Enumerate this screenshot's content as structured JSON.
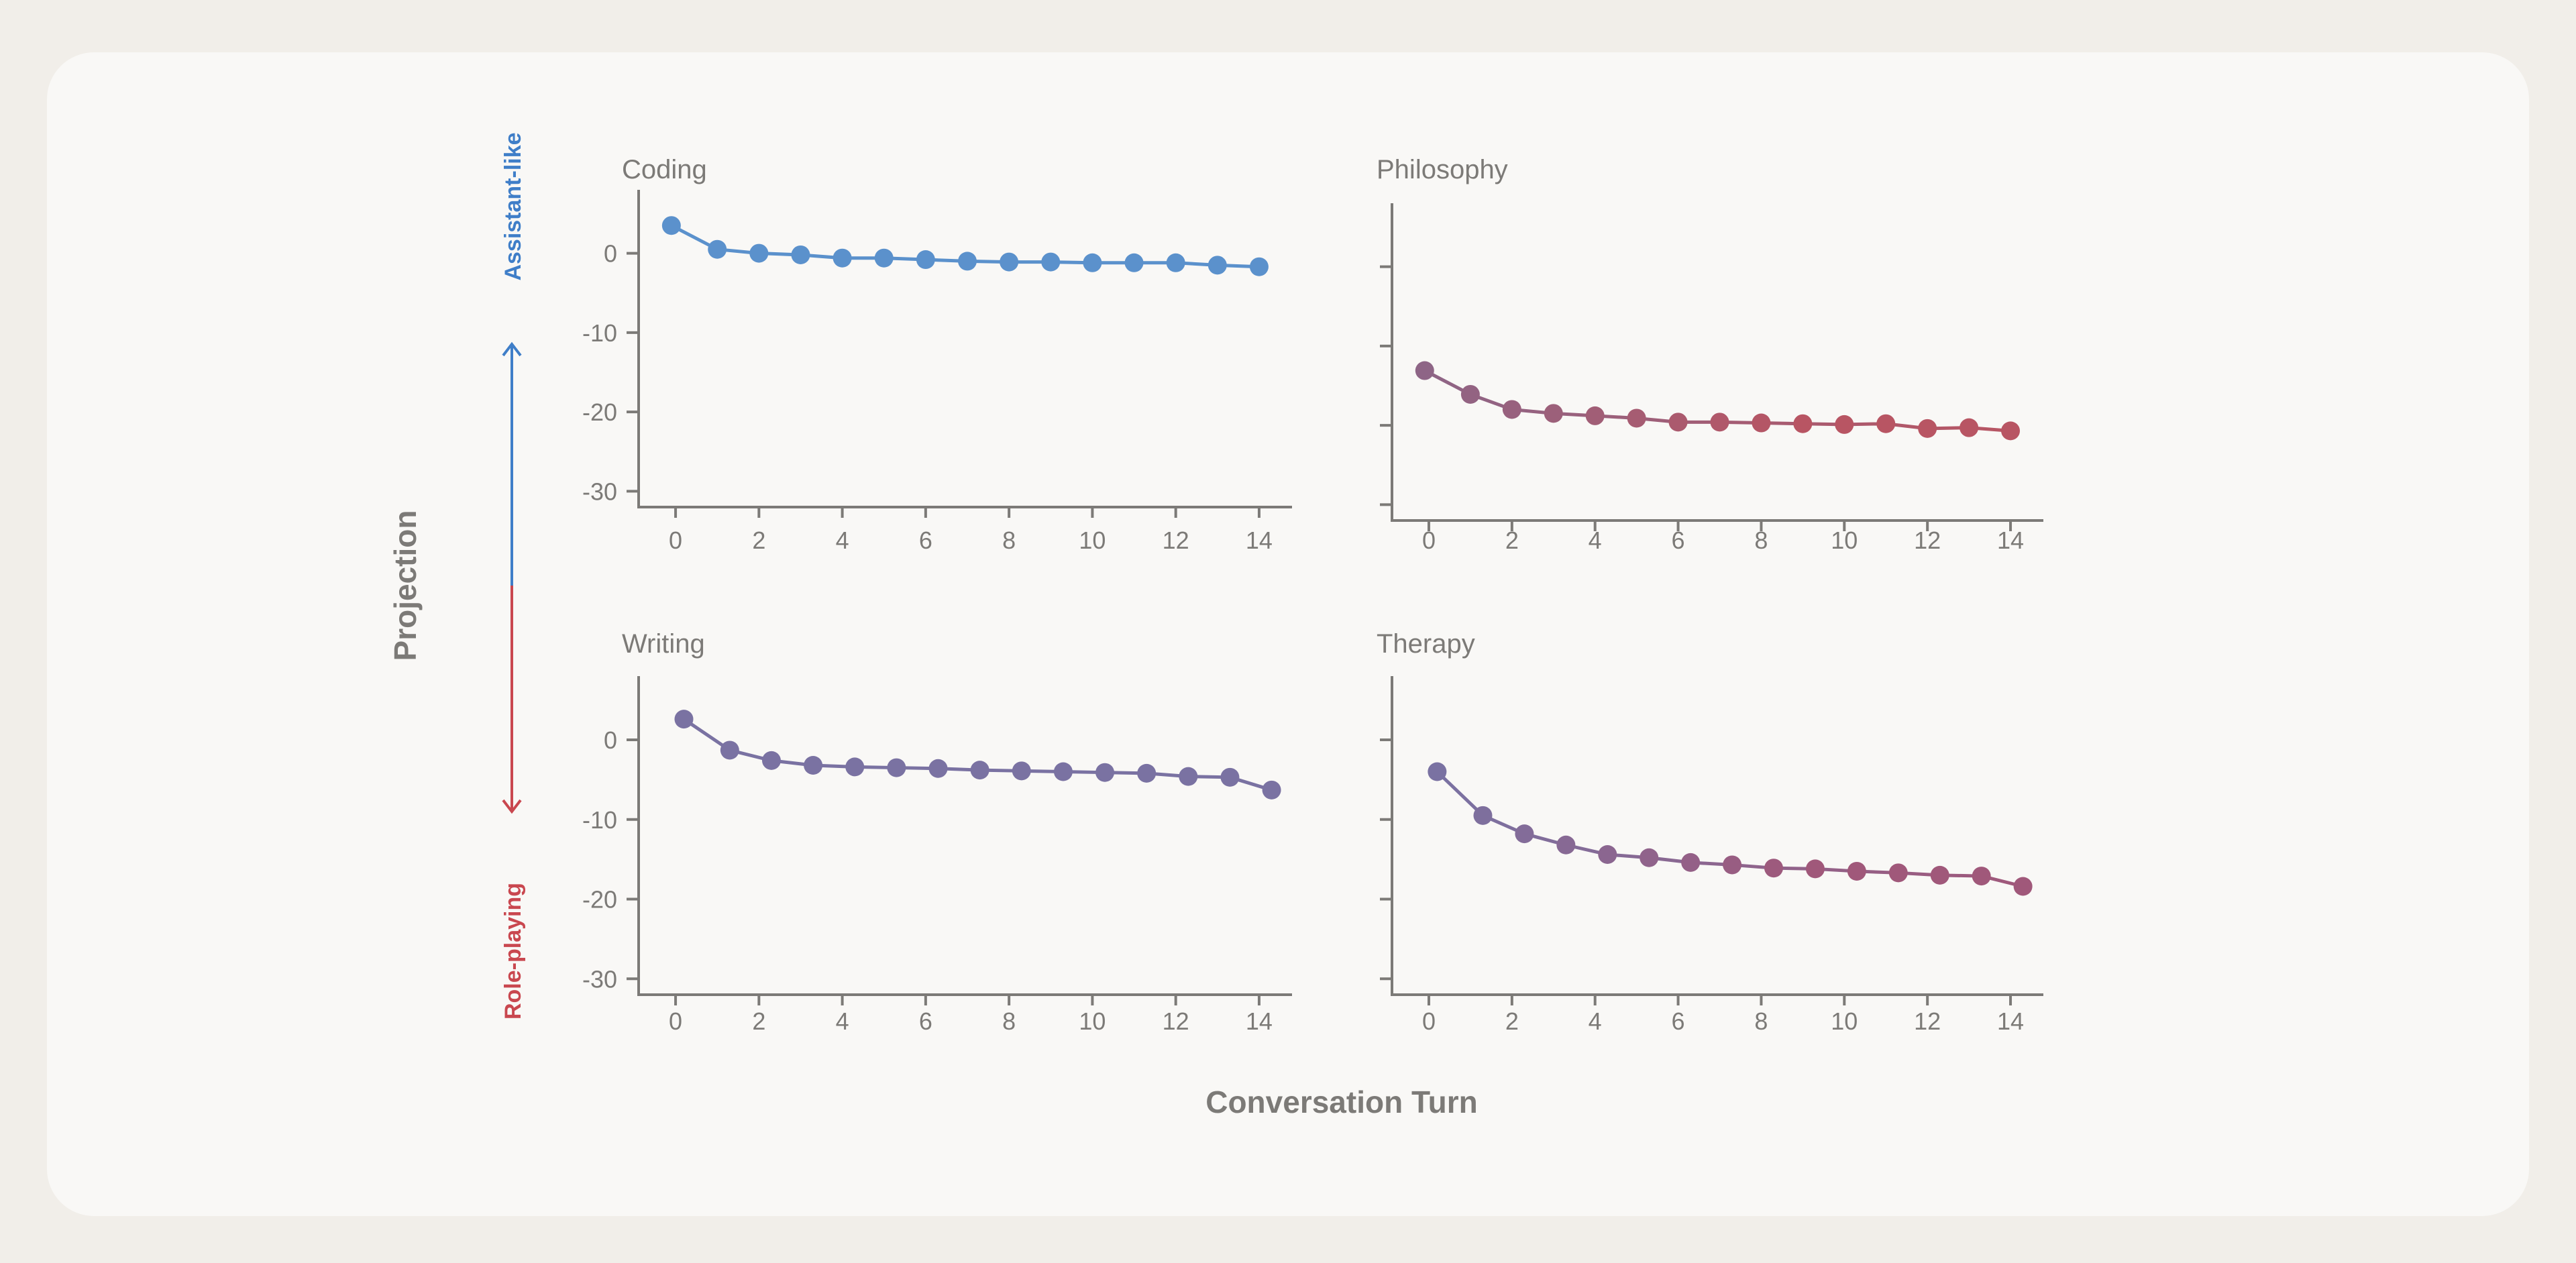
{
  "chart_data": {
    "type": "line",
    "layout": "2x2 small multiples",
    "xlabel": "Conversation Turn",
    "ylabel": "Projection",
    "y_direction": {
      "up_label": "Assistant-like",
      "down_label": "Role-playing",
      "up_color": "#3f7ec8",
      "down_color": "#c9474f"
    },
    "x_ticks": [
      0,
      2,
      4,
      6,
      8,
      10,
      12,
      14
    ],
    "y_ticks": [
      0,
      -10,
      -20,
      -30
    ],
    "y_tick_labels": [
      "0",
      "-10",
      "-20",
      "-30"
    ],
    "xlim": [
      -0.5,
      14.5
    ],
    "ylim": [
      -32,
      8
    ],
    "panels": [
      {
        "title": "Coding",
        "color": "#5b91cc",
        "show_y_tick_labels": true,
        "x": [
          -0.1,
          1.0,
          2.0,
          3.0,
          4.0,
          5.0,
          6.0,
          7.0,
          8.0,
          9.0,
          10.0,
          11.0,
          12.0,
          13.0,
          14.0
        ],
        "values": [
          3.5,
          0.5,
          0.0,
          -0.2,
          -0.6,
          -0.6,
          -0.8,
          -1.0,
          -1.1,
          -1.1,
          -1.2,
          -1.2,
          -1.2,
          -1.5,
          -1.7
        ]
      },
      {
        "title": "Philosophy",
        "color": "#b85563",
        "show_y_tick_labels": false,
        "x": [
          -0.1,
          1.0,
          2.0,
          3.0,
          4.0,
          5.0,
          6.0,
          7.0,
          8.0,
          9.0,
          10.0,
          11.0,
          12.0,
          13.0,
          14.0
        ],
        "values": [
          -13.1,
          -16.1,
          -18.0,
          -18.5,
          -18.8,
          -19.1,
          -19.6,
          -19.6,
          -19.7,
          -19.8,
          -19.9,
          -19.8,
          -20.4,
          -20.3,
          -20.7
        ],
        "gradient": [
          "#8e6586",
          "#b85563"
        ]
      },
      {
        "title": "Writing",
        "color": "#7a72a2",
        "show_y_tick_labels": true,
        "x": [
          0.2,
          1.3,
          2.3,
          3.3,
          4.3,
          5.3,
          6.3,
          7.3,
          8.3,
          9.3,
          10.3,
          11.3,
          12.3,
          13.3,
          14.3
        ],
        "values": [
          2.6,
          -1.3,
          -2.6,
          -3.2,
          -3.4,
          -3.5,
          -3.6,
          -3.8,
          -3.9,
          -4.0,
          -4.1,
          -4.2,
          -4.6,
          -4.7,
          -6.3
        ]
      },
      {
        "title": "Therapy",
        "color": "#955d7f",
        "show_y_tick_labels": false,
        "x": [
          0.2,
          1.3,
          2.3,
          3.3,
          4.3,
          5.3,
          6.3,
          7.3,
          8.3,
          9.3,
          10.3,
          11.3,
          12.3,
          13.3,
          14.3
        ],
        "values": [
          -4.0,
          -9.5,
          -11.8,
          -13.2,
          -14.4,
          -14.8,
          -15.4,
          -15.7,
          -16.1,
          -16.2,
          -16.5,
          -16.7,
          -17.0,
          -17.1,
          -18.4
        ],
        "gradient": [
          "#7a72a2",
          "#a0587a"
        ]
      }
    ]
  }
}
